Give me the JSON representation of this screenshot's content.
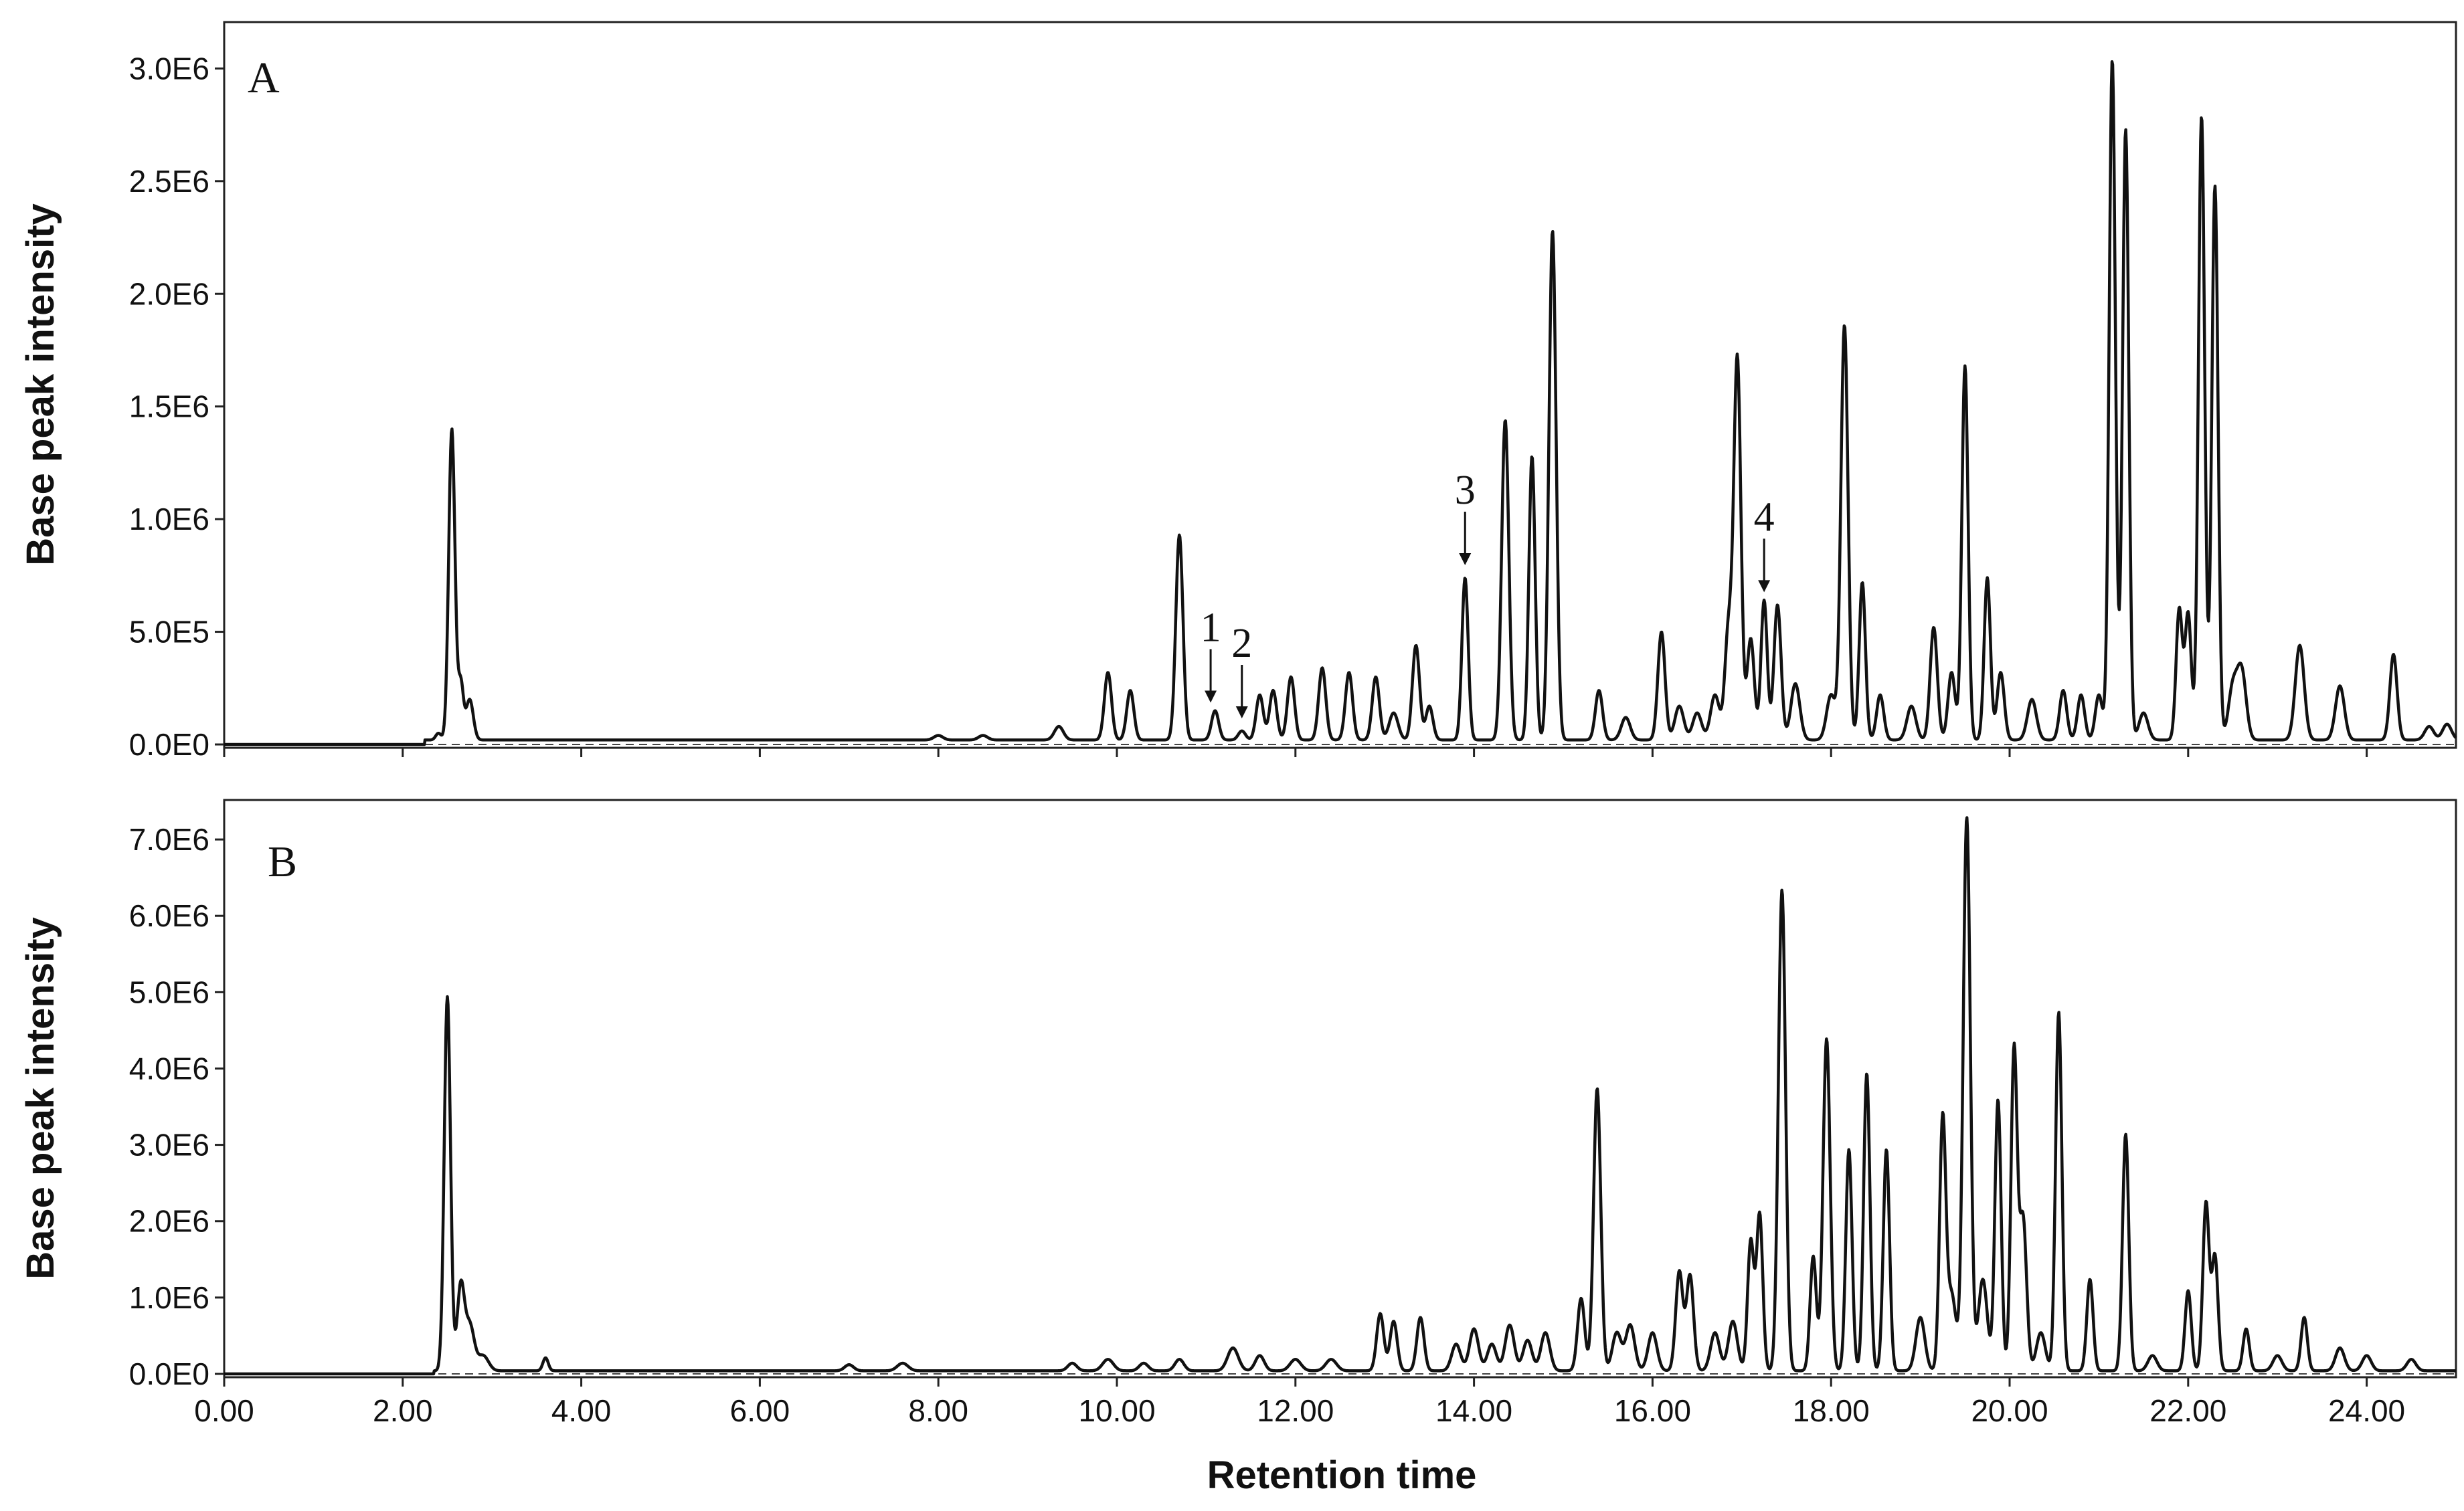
{
  "chart_data": [
    {
      "type": "line",
      "panel_label": "A",
      "xlabel": "",
      "ylabel": "Base peak intensity",
      "xlim": [
        0,
        25
      ],
      "ylim": [
        0,
        3200000
      ],
      "y_ticks": [
        0,
        500000,
        1000000,
        1500000,
        2000000,
        2500000,
        3000000
      ],
      "y_tick_labels": [
        "0.0E0",
        "5.0E5",
        "1.0E6",
        "1.5E6",
        "2.0E6",
        "2.5E6",
        "3.0E6"
      ],
      "grid": false,
      "baseline": 20000,
      "peaks": [
        [
          2.4,
          30000,
          0.03
        ],
        [
          2.55,
          1380000,
          0.035
        ],
        [
          2.65,
          250000,
          0.03
        ],
        [
          2.75,
          180000,
          0.04
        ],
        [
          8.0,
          20000,
          0.05
        ],
        [
          8.5,
          20000,
          0.05
        ],
        [
          9.35,
          60000,
          0.05
        ],
        [
          9.9,
          300000,
          0.04
        ],
        [
          10.15,
          220000,
          0.04
        ],
        [
          10.7,
          910000,
          0.04
        ],
        [
          11.1,
          130000,
          0.04
        ],
        [
          11.4,
          40000,
          0.04
        ],
        [
          11.6,
          200000,
          0.04
        ],
        [
          11.75,
          220000,
          0.04
        ],
        [
          11.95,
          280000,
          0.04
        ],
        [
          12.3,
          320000,
          0.04
        ],
        [
          12.6,
          300000,
          0.04
        ],
        [
          12.9,
          280000,
          0.04
        ],
        [
          13.1,
          120000,
          0.05
        ],
        [
          13.35,
          420000,
          0.04
        ],
        [
          13.5,
          150000,
          0.04
        ],
        [
          13.9,
          720000,
          0.035
        ],
        [
          14.35,
          1420000,
          0.04
        ],
        [
          14.65,
          1260000,
          0.035
        ],
        [
          14.88,
          2260000,
          0.04
        ],
        [
          15.4,
          220000,
          0.04
        ],
        [
          15.7,
          100000,
          0.05
        ],
        [
          16.1,
          480000,
          0.04
        ],
        [
          16.3,
          150000,
          0.05
        ],
        [
          16.5,
          120000,
          0.05
        ],
        [
          16.7,
          200000,
          0.05
        ],
        [
          16.85,
          480000,
          0.04
        ],
        [
          16.95,
          1690000,
          0.04
        ],
        [
          17.1,
          450000,
          0.04
        ],
        [
          17.25,
          620000,
          0.035
        ],
        [
          17.4,
          600000,
          0.04
        ],
        [
          17.6,
          250000,
          0.05
        ],
        [
          18.0,
          200000,
          0.05
        ],
        [
          18.15,
          1840000,
          0.04
        ],
        [
          18.35,
          700000,
          0.035
        ],
        [
          18.55,
          200000,
          0.04
        ],
        [
          18.9,
          150000,
          0.05
        ],
        [
          19.15,
          500000,
          0.04
        ],
        [
          19.35,
          300000,
          0.04
        ],
        [
          19.5,
          1660000,
          0.035
        ],
        [
          19.75,
          720000,
          0.035
        ],
        [
          19.9,
          300000,
          0.04
        ],
        [
          20.25,
          180000,
          0.05
        ],
        [
          20.6,
          220000,
          0.04
        ],
        [
          20.8,
          200000,
          0.04
        ],
        [
          21.0,
          200000,
          0.04
        ],
        [
          21.15,
          3020000,
          0.035
        ],
        [
          21.3,
          2710000,
          0.035
        ],
        [
          21.5,
          120000,
          0.05
        ],
        [
          21.9,
          580000,
          0.035
        ],
        [
          22.0,
          560000,
          0.035
        ],
        [
          22.15,
          2770000,
          0.035
        ],
        [
          22.3,
          2460000,
          0.035
        ],
        [
          22.5,
          230000,
          0.05
        ],
        [
          22.6,
          300000,
          0.05
        ],
        [
          23.25,
          420000,
          0.05
        ],
        [
          23.7,
          240000,
          0.05
        ],
        [
          24.3,
          380000,
          0.04
        ],
        [
          24.7,
          60000,
          0.05
        ],
        [
          24.9,
          70000,
          0.05
        ]
      ],
      "annotations": [
        {
          "text": "1",
          "x": 11.05,
          "y": 150000
        },
        {
          "text": "2",
          "x": 11.4,
          "y": 80000
        },
        {
          "text": "3",
          "x": 13.9,
          "y": 760000
        },
        {
          "text": "4",
          "x": 17.25,
          "y": 640000
        }
      ]
    },
    {
      "type": "line",
      "panel_label": "B",
      "xlabel": "Retention time",
      "ylabel": "Base peak intensity",
      "xlim": [
        0,
        25
      ],
      "ylim": [
        0,
        7500000
      ],
      "x_ticks": [
        0,
        2,
        4,
        6,
        8,
        10,
        12,
        14,
        16,
        18,
        20,
        22,
        24
      ],
      "x_tick_labels": [
        "0.00",
        "2.00",
        "4.00",
        "6.00",
        "8.00",
        "10.00",
        "12.00",
        "14.00",
        "16.00",
        "18.00",
        "20.00",
        "22.00",
        "24.00"
      ],
      "y_ticks": [
        0,
        1000000,
        2000000,
        3000000,
        4000000,
        5000000,
        6000000,
        7000000
      ],
      "y_tick_labels": [
        "0.0E0",
        "1.0E6",
        "2.0E6",
        "3.0E6",
        "4.0E6",
        "5.0E6",
        "6.0E6",
        "7.0E6"
      ],
      "grid": false,
      "baseline": 40000,
      "peaks": [
        [
          2.5,
          4900000,
          0.035
        ],
        [
          2.65,
          1100000,
          0.04
        ],
        [
          2.75,
          600000,
          0.05
        ],
        [
          2.9,
          200000,
          0.06
        ],
        [
          3.6,
          170000,
          0.03
        ],
        [
          7.0,
          80000,
          0.05
        ],
        [
          7.6,
          100000,
          0.06
        ],
        [
          9.5,
          100000,
          0.05
        ],
        [
          9.9,
          150000,
          0.06
        ],
        [
          10.3,
          100000,
          0.05
        ],
        [
          10.7,
          150000,
          0.05
        ],
        [
          11.3,
          300000,
          0.06
        ],
        [
          11.6,
          200000,
          0.05
        ],
        [
          12.0,
          150000,
          0.06
        ],
        [
          12.4,
          150000,
          0.06
        ],
        [
          12.95,
          750000,
          0.04
        ],
        [
          13.1,
          650000,
          0.04
        ],
        [
          13.4,
          700000,
          0.04
        ],
        [
          13.8,
          350000,
          0.05
        ],
        [
          14.0,
          550000,
          0.05
        ],
        [
          14.2,
          350000,
          0.05
        ],
        [
          14.4,
          600000,
          0.05
        ],
        [
          14.6,
          400000,
          0.05
        ],
        [
          14.8,
          500000,
          0.05
        ],
        [
          15.2,
          950000,
          0.04
        ],
        [
          15.38,
          3700000,
          0.04
        ],
        [
          15.6,
          500000,
          0.05
        ],
        [
          15.75,
          600000,
          0.05
        ],
        [
          16.0,
          500000,
          0.05
        ],
        [
          16.3,
          1300000,
          0.04
        ],
        [
          16.42,
          1250000,
          0.04
        ],
        [
          16.7,
          500000,
          0.05
        ],
        [
          16.9,
          650000,
          0.05
        ],
        [
          17.1,
          1700000,
          0.035
        ],
        [
          17.2,
          2050000,
          0.035
        ],
        [
          17.45,
          6300000,
          0.04
        ],
        [
          17.8,
          1500000,
          0.035
        ],
        [
          17.95,
          4350000,
          0.04
        ],
        [
          18.2,
          2900000,
          0.035
        ],
        [
          18.4,
          3900000,
          0.035
        ],
        [
          18.62,
          2900000,
          0.035
        ],
        [
          19.0,
          700000,
          0.05
        ],
        [
          19.25,
          3250000,
          0.035
        ],
        [
          19.35,
          1000000,
          0.05
        ],
        [
          19.52,
          7250000,
          0.04
        ],
        [
          19.7,
          1200000,
          0.05
        ],
        [
          19.87,
          3550000,
          0.035
        ],
        [
          20.05,
          4200000,
          0.035
        ],
        [
          20.15,
          2000000,
          0.04
        ],
        [
          20.35,
          500000,
          0.05
        ],
        [
          20.55,
          4700000,
          0.035
        ],
        [
          20.9,
          1200000,
          0.035
        ],
        [
          21.3,
          3100000,
          0.035
        ],
        [
          21.6,
          200000,
          0.05
        ],
        [
          22.0,
          1050000,
          0.035
        ],
        [
          22.2,
          2200000,
          0.035
        ],
        [
          22.3,
          1500000,
          0.035
        ],
        [
          22.65,
          550000,
          0.035
        ],
        [
          23.0,
          200000,
          0.05
        ],
        [
          23.3,
          700000,
          0.035
        ],
        [
          23.7,
          300000,
          0.05
        ],
        [
          24.0,
          200000,
          0.05
        ],
        [
          24.5,
          150000,
          0.05
        ]
      ]
    }
  ]
}
